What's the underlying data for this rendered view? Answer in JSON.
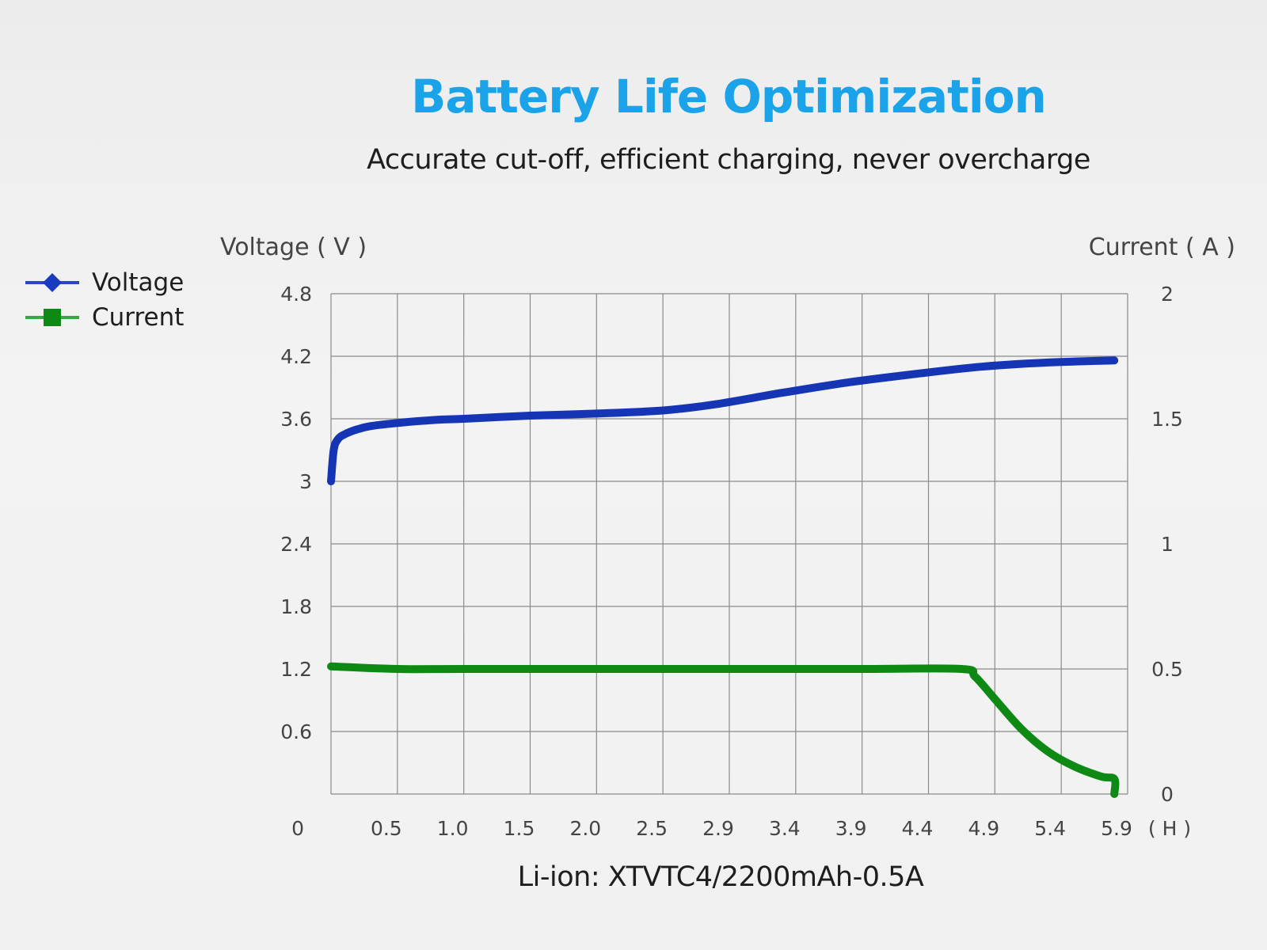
{
  "header": {
    "title": "Battery Life Optimization",
    "subtitle": "Accurate cut-off, efficient charging, never overcharge"
  },
  "caption": "Li-ion: XTVTC4/2200mAh-0.5A",
  "colors": {
    "title": "#1aa3e8",
    "voltage": "#1535b5",
    "current": "#0e8a14",
    "grid": "#8a8a8a"
  },
  "chart_data": {
    "type": "line",
    "ylabel": "Voltage ( V )",
    "y2label": "Current ( A )",
    "x_ticks": [
      "0",
      "0.5",
      "1.0",
      "1.5",
      "2.0",
      "2.5",
      "2.9",
      "3.4",
      "3.9",
      "4.4",
      "4.9",
      "5.4",
      "5.9"
    ],
    "x_unit": "( H )",
    "y_ticks": [
      "0",
      "0.6",
      "1.2",
      "1.8",
      "2.4",
      "3",
      "3.6",
      "4.2",
      "4.8"
    ],
    "y2_ticks": [
      "0",
      "0.5",
      "1",
      "1.5",
      "2"
    ],
    "ylim": [
      0,
      4.8
    ],
    "y2lim": [
      0,
      2
    ],
    "xlim": [
      0,
      6
    ],
    "grid": true,
    "legend_position": "top-left",
    "series": [
      {
        "name": "Voltage",
        "axis": "left",
        "marker": "diamond",
        "x": [
          0,
          0.02,
          0.05,
          0.1,
          0.2,
          0.3,
          0.5,
          0.8,
          1.0,
          1.5,
          2.0,
          2.5,
          2.9,
          3.4,
          3.9,
          4.4,
          4.9,
          5.4,
          5.9
        ],
        "values": [
          3.0,
          3.3,
          3.4,
          3.45,
          3.5,
          3.53,
          3.56,
          3.59,
          3.6,
          3.63,
          3.65,
          3.68,
          3.74,
          3.85,
          3.95,
          4.03,
          4.1,
          4.14,
          4.16
        ]
      },
      {
        "name": "Current",
        "axis": "right",
        "marker": "square",
        "x": [
          0,
          0.5,
          1.0,
          2.0,
          3.0,
          4.0,
          4.75,
          4.85,
          5.0,
          5.2,
          5.4,
          5.6,
          5.8,
          5.9,
          5.9
        ],
        "values": [
          0.51,
          0.5,
          0.5,
          0.5,
          0.5,
          0.5,
          0.5,
          0.47,
          0.38,
          0.26,
          0.17,
          0.11,
          0.07,
          0.06,
          0.0
        ]
      }
    ]
  }
}
